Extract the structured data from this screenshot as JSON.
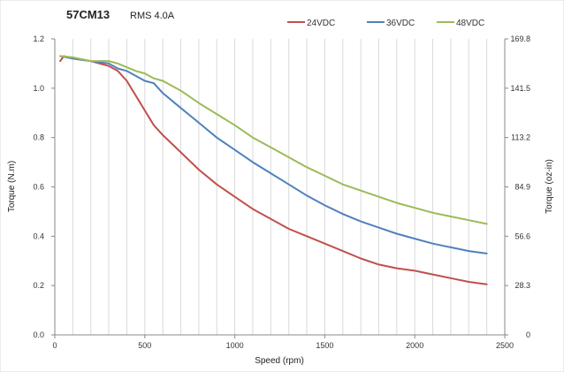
{
  "chart_data": {
    "type": "line",
    "title": "57CM13",
    "subtitle": "RMS 4.0A",
    "xlabel": "Speed (rpm)",
    "ylabel": "Torque (N.m)",
    "y2label": "Torque (oz-in)",
    "xlim": [
      0,
      2500
    ],
    "ylim": [
      0,
      1.2
    ],
    "x_ticks": [
      "0",
      "500",
      "1000",
      "1500",
      "2000",
      "2500"
    ],
    "y_ticks": [
      "0.0",
      "0.2",
      "0.4",
      "0.6",
      "0.8",
      "1.0",
      "1.2"
    ],
    "y2_ticks": [
      "0",
      "28.3",
      "56.6",
      "84.9",
      "113.2",
      "141.5",
      "169.8"
    ],
    "grid": "vertical",
    "legend_position": "top-right",
    "series": [
      {
        "name": "24VDC",
        "color": "#c0504d",
        "x": [
          30,
          50,
          100,
          200,
          300,
          350,
          400,
          450,
          500,
          550,
          600,
          700,
          800,
          900,
          1000,
          1100,
          1200,
          1300,
          1400,
          1500,
          1600,
          1700,
          1800,
          1900,
          2000,
          2100,
          2200,
          2300,
          2400
        ],
        "y": [
          1.11,
          1.13,
          1.12,
          1.11,
          1.09,
          1.07,
          1.03,
          0.97,
          0.91,
          0.85,
          0.81,
          0.74,
          0.67,
          0.61,
          0.56,
          0.51,
          0.47,
          0.43,
          0.4,
          0.37,
          0.34,
          0.31,
          0.285,
          0.27,
          0.26,
          0.245,
          0.23,
          0.215,
          0.205
        ]
      },
      {
        "name": "36VDC",
        "color": "#4f81bd",
        "x": [
          30,
          100,
          200,
          300,
          350,
          400,
          450,
          500,
          550,
          600,
          700,
          800,
          900,
          1000,
          1100,
          1200,
          1300,
          1400,
          1500,
          1600,
          1700,
          1800,
          1900,
          2000,
          2100,
          2200,
          2300,
          2400
        ],
        "y": [
          1.13,
          1.12,
          1.11,
          1.1,
          1.08,
          1.07,
          1.05,
          1.03,
          1.02,
          0.98,
          0.92,
          0.86,
          0.8,
          0.75,
          0.7,
          0.655,
          0.61,
          0.565,
          0.525,
          0.49,
          0.46,
          0.435,
          0.41,
          0.39,
          0.37,
          0.355,
          0.34,
          0.33
        ]
      },
      {
        "name": "48VDC",
        "color": "#9bbb59",
        "x": [
          30,
          100,
          200,
          300,
          350,
          400,
          450,
          500,
          550,
          600,
          700,
          800,
          900,
          1000,
          1100,
          1200,
          1300,
          1400,
          1500,
          1600,
          1700,
          1800,
          1900,
          2000,
          2100,
          2200,
          2300,
          2400
        ],
        "y": [
          1.13,
          1.125,
          1.11,
          1.11,
          1.1,
          1.085,
          1.07,
          1.06,
          1.04,
          1.03,
          0.99,
          0.94,
          0.895,
          0.85,
          0.8,
          0.76,
          0.72,
          0.68,
          0.645,
          0.61,
          0.585,
          0.56,
          0.535,
          0.515,
          0.495,
          0.48,
          0.465,
          0.45
        ]
      }
    ]
  }
}
